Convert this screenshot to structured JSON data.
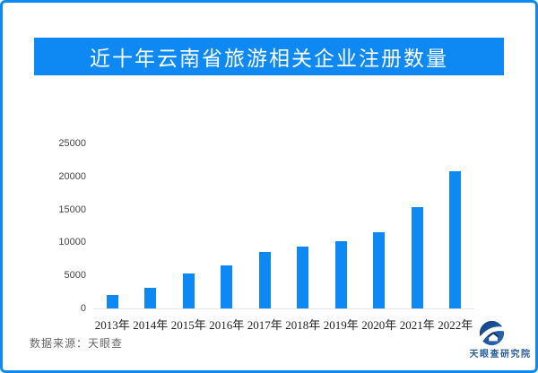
{
  "header": {
    "title": "近十年云南省旅游相关企业注册数量"
  },
  "chart_data": {
    "type": "bar",
    "title": "近十年云南省旅游相关企业注册数量",
    "categories": [
      "2013年",
      "2014年",
      "2015年",
      "2016年",
      "2017年",
      "2018年",
      "2019年",
      "2020年",
      "2021年",
      "2022年"
    ],
    "values": [
      2000,
      3100,
      5300,
      6500,
      8500,
      9400,
      10200,
      11600,
      15400,
      20800
    ],
    "xlabel": "",
    "ylabel": "",
    "ylim": [
      0,
      25000
    ],
    "yticks": [
      0,
      5000,
      10000,
      15000,
      20000,
      25000
    ],
    "grid": false,
    "legend_position": "none",
    "bar_color": "#0e88f2"
  },
  "footer": {
    "source": "数据来源：天眼查",
    "logo_text": "天眼查研究院"
  },
  "colors": {
    "accent_blue": "#0e88f2",
    "logo_blue": "#2a5c9d",
    "logo_dark_blue": "#123f7e",
    "source_gray": "#666666",
    "axis_line": "#e4e4e4",
    "ytick_text": "#444444",
    "xlabel_text": "#222222"
  }
}
